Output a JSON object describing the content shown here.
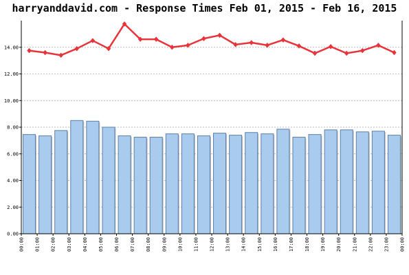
{
  "chart_data": {
    "type": "bar",
    "title": "harryanddavid.com - Response Times Feb 01, 2015 - Feb 16, 2015",
    "xlabel": "",
    "ylabel": "",
    "ylim": [
      0,
      16
    ],
    "y_ticks": [
      "0.00",
      "2.00",
      "4.00",
      "6.00",
      "8.00",
      "10.00",
      "12.00",
      "14.00"
    ],
    "x_ticks": [
      "00:00",
      "01:00",
      "02:00",
      "03:00",
      "04:00",
      "05:00",
      "06:00",
      "07:00",
      "08:00",
      "09:00",
      "10:00",
      "11:00",
      "12:00",
      "13:00",
      "14:00",
      "15:00",
      "16:00",
      "17:00",
      "18:00",
      "19:00",
      "20:00",
      "21:00",
      "22:00",
      "23:00",
      "00:00"
    ],
    "categories": [
      "00:00",
      "01:00",
      "02:00",
      "03:00",
      "04:00",
      "05:00",
      "06:00",
      "07:00",
      "08:00",
      "09:00",
      "10:00",
      "11:00",
      "12:00",
      "13:00",
      "14:00",
      "15:00",
      "16:00",
      "17:00",
      "18:00",
      "19:00",
      "20:00",
      "21:00",
      "22:00",
      "23:00"
    ],
    "series": [
      {
        "kind": "bar",
        "color": "#a8cbee",
        "values": [
          7.45,
          7.35,
          7.75,
          8.5,
          8.45,
          8.0,
          7.35,
          7.25,
          7.25,
          7.5,
          7.5,
          7.35,
          7.55,
          7.4,
          7.6,
          7.5,
          7.85,
          7.25,
          7.45,
          7.8,
          7.8,
          7.65,
          7.7,
          7.4
        ]
      },
      {
        "kind": "line",
        "color": "#e8333a",
        "values": [
          13.75,
          13.6,
          13.4,
          13.9,
          14.5,
          13.9,
          15.75,
          14.6,
          14.6,
          14.0,
          14.15,
          14.65,
          14.9,
          14.2,
          14.35,
          14.15,
          14.55,
          14.1,
          13.55,
          14.05,
          13.55,
          13.75,
          14.15,
          13.6
        ]
      }
    ],
    "grid": true,
    "colors": {
      "bar_fill": "#a8cbee",
      "bar_edge": "#5a7fa8",
      "line": "#e8333a",
      "grid": "#bbbbbb",
      "axis": "#000000"
    }
  }
}
